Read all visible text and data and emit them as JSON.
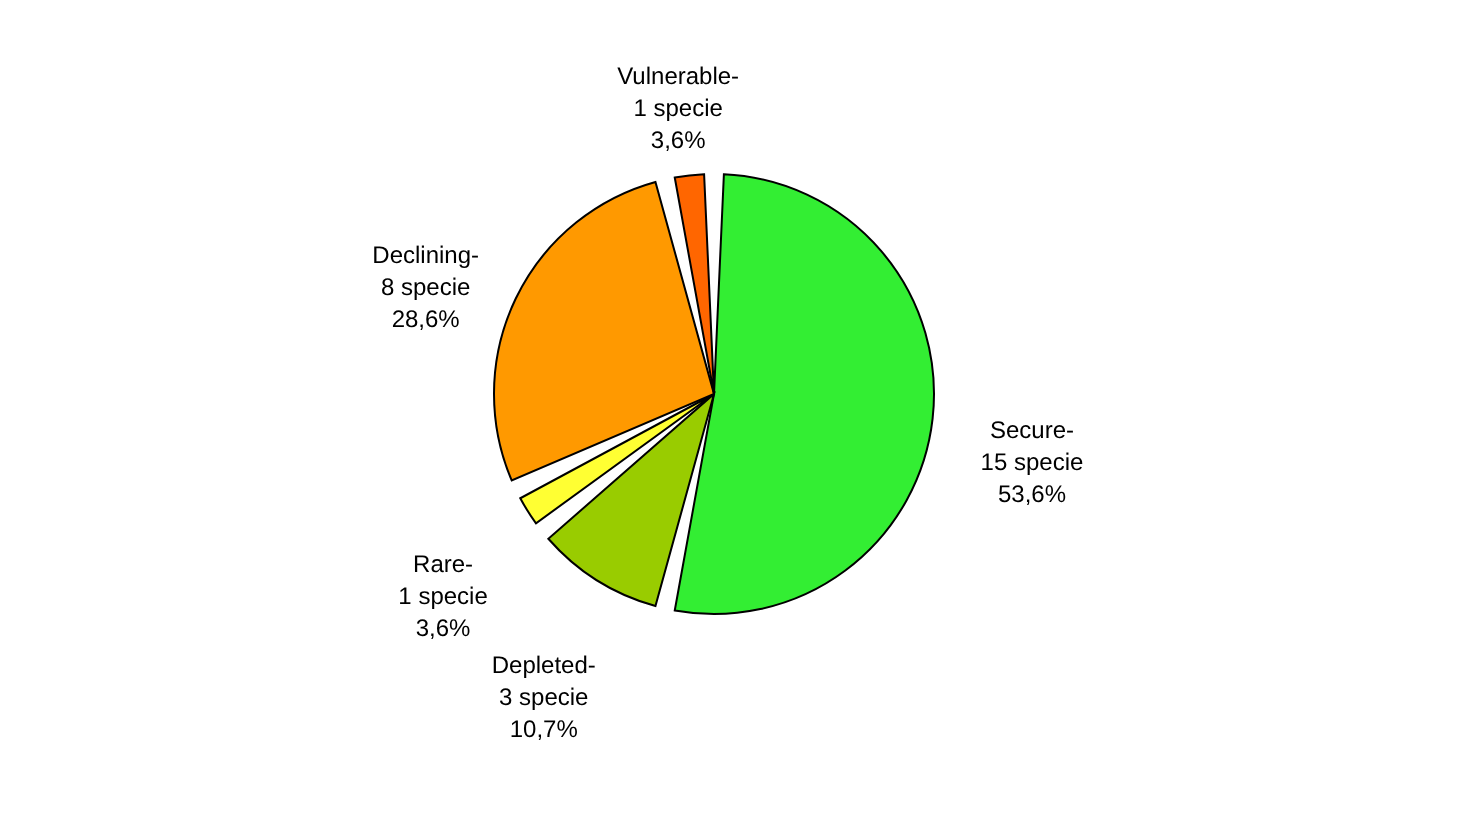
{
  "chart_data": {
    "type": "pie",
    "categories": [
      "Secure-",
      "Depleted-",
      "Rare-",
      "Declining-",
      "Vulnerable-"
    ],
    "values": [
      15,
      3,
      1,
      8,
      1
    ],
    "value_labels": [
      "15 specie\n53,6%",
      "3 specie\n10,7%",
      "1 specie\n3,6%",
      "8 specie\n28,6%",
      "1 specie\n3,6%"
    ],
    "colors": [
      "#33ee33",
      "#99cc00",
      "#ffff33",
      "#ff9900",
      "#ff6600"
    ]
  }
}
